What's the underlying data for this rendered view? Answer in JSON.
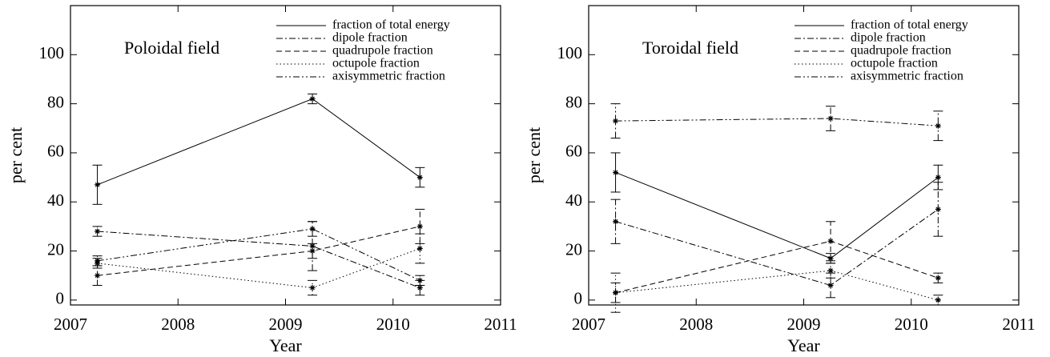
{
  "chart_data": [
    {
      "type": "line",
      "title": "Poloidal field",
      "xlabel": "Year",
      "ylabel": "per cent",
      "x": [
        2007.25,
        2009.25,
        2010.25
      ],
      "xlim": [
        2007,
        2011
      ],
      "xticks": [
        2007,
        2008,
        2009,
        2010,
        2011
      ],
      "ylim": [
        -2,
        120
      ],
      "yticks": [
        0,
        20,
        40,
        60,
        80,
        100
      ],
      "legend": "upper right",
      "series": [
        {
          "name": "fraction of total energy",
          "color": "#000000",
          "linestyle": "solid",
          "values": [
            47,
            82,
            50
          ],
          "errors": [
            8,
            2,
            4
          ]
        },
        {
          "name": "dipole fraction",
          "color": "#000000",
          "linestyle": "dashdot",
          "values": [
            28,
            22,
            5
          ],
          "errors": [
            2,
            10,
            3
          ]
        },
        {
          "name": "quadrupole fraction",
          "color": "#000000",
          "linestyle": "dashed",
          "values": [
            10,
            20,
            30
          ],
          "errors": [
            4,
            3,
            7
          ]
        },
        {
          "name": "octupole fraction",
          "color": "#000000",
          "linestyle": "dotted",
          "values": [
            15,
            5,
            21
          ],
          "errors": [
            2,
            3,
            6
          ]
        },
        {
          "name": "axisymmetric fraction",
          "color": "#000000",
          "linestyle": "dashdotdot",
          "values": [
            16,
            29,
            8
          ],
          "errors": [
            2,
            3,
            2
          ]
        }
      ]
    },
    {
      "type": "line",
      "title": "Toroidal field",
      "xlabel": "Year",
      "ylabel": "per cent",
      "x": [
        2007.25,
        2009.25,
        2010.25
      ],
      "xlim": [
        2007,
        2011
      ],
      "xticks": [
        2007,
        2008,
        2009,
        2010,
        2011
      ],
      "ylim": [
        -2,
        120
      ],
      "yticks": [
        0,
        20,
        40,
        60,
        80,
        100
      ],
      "legend": "upper right",
      "series": [
        {
          "name": "fraction of total energy",
          "color": "#000000",
          "linestyle": "solid",
          "values": [
            52,
            17,
            50
          ],
          "errors": [
            8,
            2,
            5
          ]
        },
        {
          "name": "dipole fraction",
          "color": "#000000",
          "linestyle": "dashdot",
          "values": [
            32,
            6,
            37
          ],
          "errors": [
            9,
            5,
            11
          ]
        },
        {
          "name": "quadrupole fraction",
          "color": "#000000",
          "linestyle": "dashed",
          "values": [
            3,
            24,
            9
          ],
          "errors": [
            4,
            8,
            2
          ]
        },
        {
          "name": "octupole fraction",
          "color": "#000000",
          "linestyle": "dotted",
          "values": [
            3,
            12,
            0
          ],
          "errors": [
            8,
            3,
            2
          ]
        },
        {
          "name": "axisymmetric fraction",
          "color": "#000000",
          "linestyle": "dashdotdot",
          "values": [
            73,
            74,
            71
          ],
          "errors": [
            7,
            5,
            6
          ]
        }
      ]
    }
  ]
}
